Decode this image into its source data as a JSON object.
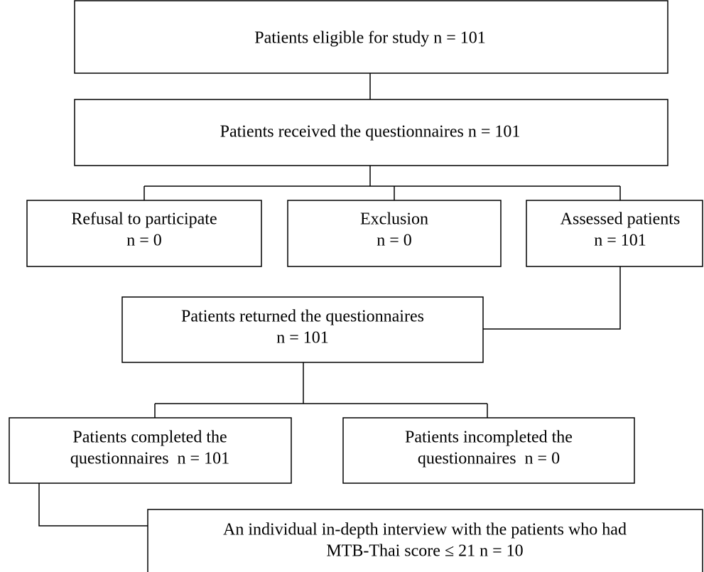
{
  "nodes": [
    {
      "lines": [
        "Patients eligible for study n = 101"
      ]
    },
    {
      "lines": [
        "Patients received the questionnaires n = 101"
      ]
    },
    {
      "lines": [
        "Refusal to participate",
        "n = 0"
      ]
    },
    {
      "lines": [
        "Exclusion",
        "n = 0"
      ]
    },
    {
      "lines": [
        "Assessed patients",
        "n = 101"
      ]
    },
    {
      "lines": [
        "Patients returned the questionnaires",
        "n = 101"
      ]
    },
    {
      "lines": [
        "Patients completed the",
        "questionnaires  n = 101"
      ]
    },
    {
      "lines": [
        "Patients incompleted the",
        "questionnaires  n = 0"
      ]
    },
    {
      "lines": [
        "An individual in-depth interview with the patients who had",
        "MTB-Thai score ≤ 21 n = 10"
      ]
    }
  ]
}
